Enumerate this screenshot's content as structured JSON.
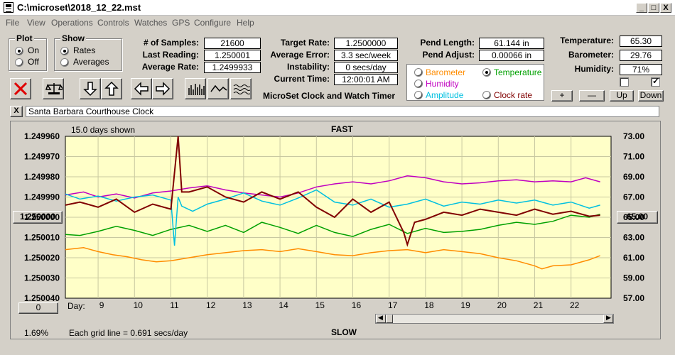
{
  "window": {
    "title": "C:\\microset\\2018_12_22.mst",
    "controls": [
      "_",
      "□",
      "X"
    ]
  },
  "menu": [
    "File",
    "View",
    "Operations",
    "Controls",
    "Watches",
    "GPS",
    "Configure",
    "Help"
  ],
  "plot_group": {
    "label": "Plot",
    "options": [
      {
        "label": "On",
        "selected": true
      },
      {
        "label": "Off",
        "selected": false
      }
    ]
  },
  "show_group": {
    "label": "Show",
    "options": [
      {
        "label": "Rates",
        "selected": true
      },
      {
        "label": "Averages",
        "selected": false
      }
    ]
  },
  "stats_left": [
    {
      "label": "# of Samples:",
      "value": "21600"
    },
    {
      "label": "Last Reading:",
      "value": "1.250001"
    },
    {
      "label": "Average Rate:",
      "value": "1.2499933"
    }
  ],
  "stats_mid": [
    {
      "label": "Target Rate:",
      "value": "1.2500000"
    },
    {
      "label": "Average Error:",
      "value": "3.3 sec/week"
    },
    {
      "label": "Instability:",
      "value": "0 secs/day"
    },
    {
      "label": "Current Time:",
      "value": "12:00:01 AM"
    }
  ],
  "app_name": "MicroSet Clock and Watch Timer",
  "pend": [
    {
      "label": "Pend Length:",
      "value": "61.144 in"
    },
    {
      "label": "Pend Adjust:",
      "value": "0.00066 in"
    }
  ],
  "env": [
    {
      "label": "Temperature:",
      "value": "65.30"
    },
    {
      "label": "Barometer:",
      "value": "29.76"
    },
    {
      "label": "Humidity:",
      "value": "71%"
    }
  ],
  "env_checks": [
    false,
    true
  ],
  "trace_selector": [
    {
      "label": "Barometer",
      "color": "#ff8c00",
      "selected": false
    },
    {
      "label": "Temperature",
      "color": "#00a000",
      "selected": true
    },
    {
      "label": "Humidity",
      "color": "#c000c0",
      "selected": false
    },
    {
      "label": "Amplitude",
      "color": "#00c0e0",
      "selected": false
    },
    {
      "label": "Clock rate",
      "color": "#800000",
      "selected": false
    }
  ],
  "scale_buttons": [
    "+",
    "—",
    "Up",
    "Down"
  ],
  "clock_name": "Santa Barbara Courthouse Clock",
  "close_label": "X",
  "plot": {
    "days_shown": "15.0 days shown",
    "top_label": "FAST",
    "bottom_label": "SLOW",
    "grid_note": "Each grid line = 0.691 secs/day",
    "percent": "1.69%",
    "day_label": "Day:",
    "center_rate": "1.250000",
    "center_temp": "65.00",
    "zero_btn": "0"
  },
  "chart_data": {
    "type": "line",
    "title": "",
    "xlabel": "Day:",
    "ylabel": "",
    "x_ticks": [
      "9",
      "10",
      "11",
      "12",
      "13",
      "14",
      "15",
      "16",
      "17",
      "18",
      "19",
      "20",
      "21",
      "22"
    ],
    "y_left_ticks": [
      "1.249960",
      "1.249970",
      "1.249980",
      "1.249990",
      "1.250000",
      "1.250010",
      "1.250020",
      "1.250030",
      "1.250040"
    ],
    "y_right_ticks": [
      "73.00",
      "71.00",
      "69.00",
      "67.00",
      "65.00",
      "63.00",
      "61.00",
      "59.00",
      "57.00"
    ],
    "xlim": [
      8.1,
      23.1
    ],
    "y_right_lim": [
      57,
      73
    ],
    "series": [
      {
        "name": "Barometer",
        "color": "#ff8c00",
        "x": [
          8.1,
          8.6,
          9.0,
          9.4,
          9.8,
          10.2,
          10.6,
          11.0,
          11.5,
          12.0,
          12.5,
          13.0,
          13.5,
          14.0,
          14.5,
          15.0,
          15.5,
          16.0,
          16.5,
          17.0,
          17.5,
          18.0,
          18.5,
          19.0,
          19.5,
          20.0,
          20.5,
          21.0,
          21.2,
          21.5,
          22.0,
          22.5,
          22.8
        ],
        "y": [
          61.8,
          62.0,
          61.6,
          61.3,
          61.1,
          60.8,
          60.6,
          60.7,
          61.0,
          61.3,
          61.5,
          61.7,
          61.8,
          61.6,
          61.9,
          61.6,
          61.3,
          61.2,
          61.5,
          61.7,
          61.8,
          61.5,
          61.8,
          61.6,
          61.4,
          61.0,
          60.7,
          60.2,
          59.9,
          60.2,
          60.3,
          60.8,
          61.2
        ]
      },
      {
        "name": "Temperature",
        "color": "#00a000",
        "x": [
          8.1,
          8.5,
          9.0,
          9.5,
          10.0,
          10.5,
          11.0,
          11.5,
          12.0,
          12.5,
          13.0,
          13.5,
          14.0,
          14.5,
          15.0,
          15.5,
          16.0,
          16.5,
          17.0,
          17.5,
          18.0,
          18.5,
          19.0,
          19.5,
          20.0,
          20.5,
          21.0,
          21.5,
          22.0,
          22.5,
          22.8
        ],
        "y": [
          63.3,
          63.2,
          63.6,
          64.1,
          63.7,
          63.2,
          63.8,
          64.2,
          63.6,
          64.2,
          63.5,
          64.5,
          64.0,
          63.4,
          64.2,
          63.5,
          63.1,
          63.8,
          64.3,
          63.4,
          63.9,
          63.5,
          63.6,
          63.8,
          64.2,
          64.5,
          64.3,
          64.6,
          65.2,
          65.0,
          65.3
        ]
      },
      {
        "name": "Humidity",
        "color": "#c000c0",
        "x": [
          8.1,
          8.6,
          9.0,
          9.5,
          10.0,
          10.5,
          11.0,
          11.5,
          12.0,
          12.5,
          13.0,
          13.5,
          14.0,
          14.5,
          15.0,
          15.5,
          16.0,
          16.5,
          17.0,
          17.5,
          18.0,
          18.5,
          19.0,
          19.5,
          20.0,
          20.5,
          21.0,
          21.5,
          22.0,
          22.4,
          22.8
        ],
        "y": [
          67.2,
          67.5,
          67.0,
          67.3,
          66.9,
          67.4,
          67.6,
          67.9,
          68.1,
          67.7,
          67.4,
          67.2,
          67.0,
          67.4,
          68.0,
          68.3,
          68.5,
          68.3,
          68.6,
          69.1,
          68.9,
          68.5,
          68.3,
          68.4,
          68.6,
          68.7,
          68.5,
          68.6,
          68.5,
          68.9,
          68.5
        ]
      },
      {
        "name": "Amplitude",
        "color": "#00c0e0",
        "x": [
          8.1,
          8.5,
          9.0,
          9.5,
          10.0,
          10.5,
          11.0,
          11.1,
          11.2,
          11.3,
          11.6,
          12.0,
          12.5,
          13.0,
          13.5,
          14.0,
          14.5,
          15.0,
          15.5,
          16.0,
          16.5,
          17.0,
          17.5,
          18.0,
          18.5,
          19.0,
          19.5,
          20.0,
          20.5,
          21.0,
          21.5,
          22.0,
          22.5,
          22.8
        ],
        "y": [
          67.3,
          66.8,
          67.1,
          66.6,
          67.0,
          67.2,
          66.7,
          62.2,
          67.0,
          66.1,
          65.6,
          66.3,
          66.8,
          67.4,
          66.6,
          66.2,
          66.9,
          67.7,
          66.5,
          66.2,
          66.8,
          66.0,
          66.3,
          66.8,
          66.1,
          66.5,
          66.3,
          66.7,
          66.4,
          66.7,
          66.2,
          66.5,
          65.9,
          66.2
        ]
      },
      {
        "name": "Clock rate",
        "color": "#800000",
        "x": [
          8.1,
          8.5,
          9.0,
          9.5,
          10.0,
          10.5,
          11.0,
          11.2,
          11.3,
          11.5,
          12.0,
          12.5,
          13.0,
          13.5,
          14.0,
          14.5,
          15.0,
          15.5,
          16.0,
          16.5,
          17.0,
          17.4,
          17.5,
          17.7,
          18.0,
          18.5,
          19.0,
          19.5,
          20.0,
          20.5,
          21.0,
          21.5,
          22.0,
          22.5,
          22.8
        ],
        "y": [
          66.2,
          66.5,
          66.0,
          66.8,
          65.5,
          66.3,
          65.8,
          73.0,
          67.5,
          67.5,
          68.0,
          67.0,
          66.5,
          67.5,
          66.8,
          67.5,
          66.0,
          65.0,
          66.8,
          65.5,
          66.5,
          63.5,
          62.3,
          64.5,
          64.8,
          65.5,
          65.2,
          65.8,
          65.5,
          65.2,
          65.8,
          65.3,
          65.6,
          65.1,
          65.2
        ]
      }
    ]
  }
}
